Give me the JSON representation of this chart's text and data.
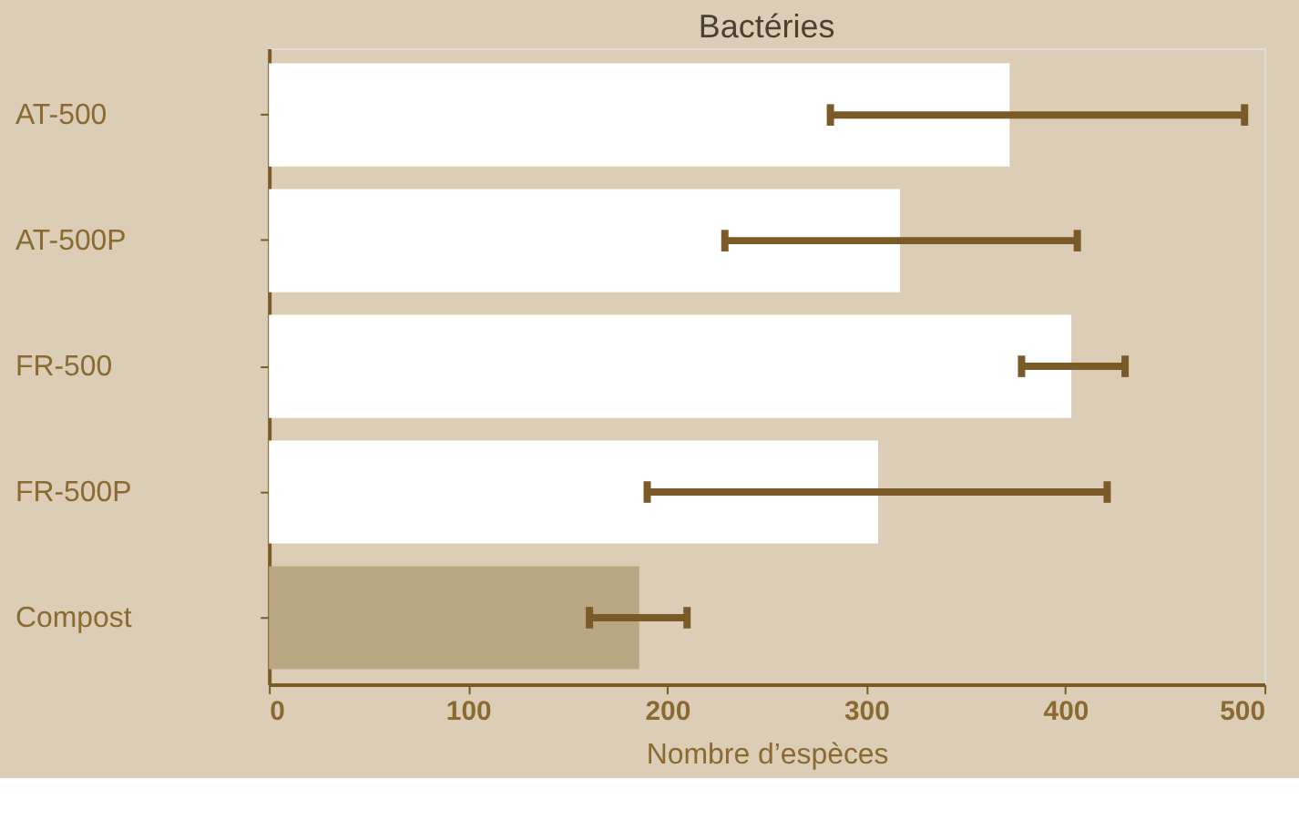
{
  "chart_data": {
    "type": "bar",
    "orientation": "horizontal",
    "title": "Bactéries",
    "xlabel": "Nombre d’espèces",
    "categories": [
      "AT-500",
      "AT-500P",
      "FR-500",
      "FR-500P",
      "Compost"
    ],
    "values": [
      372,
      317,
      403,
      306,
      186
    ],
    "colors": [
      "#ffffff",
      "#ffffff",
      "#ffffff",
      "#ffffff",
      "#b9a784"
    ],
    "errors": [
      [
        282,
        490
      ],
      [
        229,
        406
      ],
      [
        378,
        430
      ],
      [
        190,
        421
      ],
      [
        161,
        210
      ]
    ],
    "xlim": [
      0,
      500
    ],
    "xticks": [
      0,
      100,
      200,
      300,
      400,
      500
    ],
    "grid": false,
    "legend": false
  }
}
